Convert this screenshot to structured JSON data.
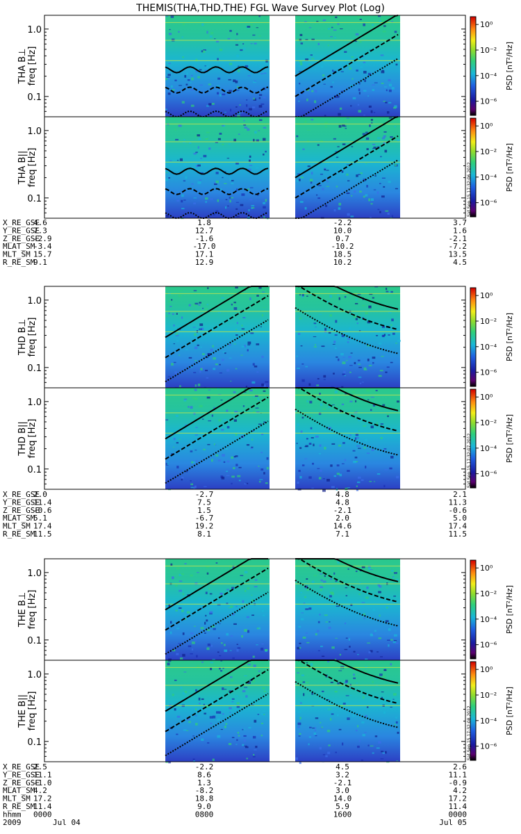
{
  "title": "THEMIS(THA,THD,THE) FGL Wave Survey Plot (Log)",
  "colorbar": {
    "label": "PSD [nT²/Hz]",
    "tick_labels": [
      "10⁰",
      "10⁻²",
      "10⁻⁴",
      "10⁻⁶"
    ],
    "stamps": [
      "Sat Sep 15 17:32:06 2012",
      "Sat Sep 15 17:32:07 2012",
      "Sat Sep 15 17:32:08 2012"
    ]
  },
  "freq_ticks": [
    "1.0",
    "0.1"
  ],
  "ylabel": "freq [Hz]",
  "panels": [
    {
      "name": "THA B⊥",
      "ylabel": "freq [Hz]"
    },
    {
      "name": "THA B||",
      "ylabel": "freq [Hz]"
    },
    {
      "name": "THD B⊥",
      "ylabel": "freq [Hz]"
    },
    {
      "name": "THD B||",
      "ylabel": "freq [Hz]"
    },
    {
      "name": "THE B⊥",
      "ylabel": "freq [Hz]"
    },
    {
      "name": "THE B||",
      "ylabel": "freq [Hz]"
    }
  ],
  "ephem_groups": [
    {
      "rows": [
        {
          "label": "X_RE_GSE",
          "vals": [
            "4.6",
            "1.8",
            "-2.2",
            "3.7"
          ]
        },
        {
          "label": "Y_RE_GSE",
          "vals": [
            "7.3",
            "12.7",
            "10.0",
            "1.6"
          ]
        },
        {
          "label": "Z_RE_GSE",
          "vals": [
            "-2.9",
            "-1.6",
            "0.7",
            "-2.1"
          ]
        },
        {
          "label": "MLAT_SM",
          "vals": [
            "-3.4",
            "-17.0",
            "-10.2",
            "-7.2"
          ]
        },
        {
          "label": "MLT_SM",
          "vals": [
            "15.7",
            "17.1",
            "18.5",
            "13.5"
          ]
        },
        {
          "label": "R_RE_SM",
          "vals": [
            "9.1",
            "12.9",
            "10.2",
            "4.5"
          ]
        }
      ]
    },
    {
      "rows": [
        {
          "label": "X_RE_GSE",
          "vals": [
            "2.0",
            "-2.7",
            "4.8",
            "2.1"
          ]
        },
        {
          "label": "Y_RE_GSE",
          "vals": [
            "11.4",
            "7.5",
            "4.8",
            "11.3"
          ]
        },
        {
          "label": "Z_RE_GSE",
          "vals": [
            "-0.6",
            "1.5",
            "-2.1",
            "-0.6"
          ]
        },
        {
          "label": "MLAT_SM",
          "vals": [
            "5.1",
            "-6.7",
            "2.0",
            "5.0"
          ]
        },
        {
          "label": "MLT_SM",
          "vals": [
            "17.4",
            "19.2",
            "14.6",
            "17.4"
          ]
        },
        {
          "label": "R_RE_SM",
          "vals": [
            "11.5",
            "8.1",
            "7.1",
            "11.5"
          ]
        }
      ]
    },
    {
      "rows": [
        {
          "label": "X_RE_GSE",
          "vals": [
            "2.5",
            "-2.2",
            "4.5",
            "2.6"
          ]
        },
        {
          "label": "Y_RE_GSE",
          "vals": [
            "11.1",
            "8.6",
            "3.2",
            "11.1"
          ]
        },
        {
          "label": "Z_RE_GSE",
          "vals": [
            "-1.0",
            "1.3",
            "-2.1",
            "-0.9"
          ]
        },
        {
          "label": "MLAT_SM",
          "vals": [
            "4.2",
            "-8.2",
            "3.0",
            "4.2"
          ]
        },
        {
          "label": "MLT_SM",
          "vals": [
            "17.2",
            "18.8",
            "14.0",
            "17.2"
          ]
        },
        {
          "label": "R_RE_SM",
          "vals": [
            "11.4",
            "9.0",
            "5.9",
            "11.4"
          ]
        },
        {
          "label": "hhmm",
          "vals": [
            "0000",
            "0800",
            "1600",
            "0000"
          ]
        }
      ],
      "date_row": [
        "2009",
        "Jul 04",
        "",
        "Jul 05"
      ]
    }
  ],
  "chart_data": {
    "type": "heatmap",
    "title": "THEMIS(THA,THD,THE) FGL Wave Survey Plot (Log)",
    "x": [
      "0000",
      "0800",
      "1600",
      "0000"
    ],
    "ylabel": "freq [Hz]",
    "ylim": [
      0.05,
      1.6
    ],
    "yscale": "log",
    "zlabel": "PSD [nT²/Hz]",
    "zscale": "log",
    "zlim": [
      1e-06,
      1
    ],
    "series": [
      {
        "name": "THA B⊥"
      },
      {
        "name": "THA B||"
      },
      {
        "name": "THD B⊥"
      },
      {
        "name": "THD B||"
      },
      {
        "name": "THE B⊥"
      },
      {
        "name": "THE B||"
      }
    ]
  }
}
